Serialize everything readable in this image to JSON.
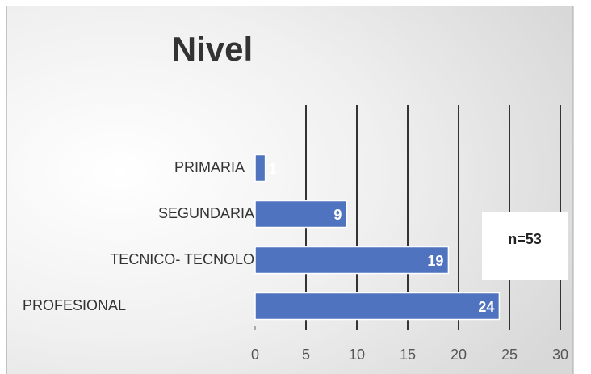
{
  "chart_data": {
    "type": "bar",
    "orientation": "horizontal",
    "title": "Nivel",
    "categories": [
      "PRIMARIA",
      "SEGUNDARIA",
      "TECNICO- TECNOLOGO",
      "PROFESIONAL"
    ],
    "values": [
      1,
      9,
      19,
      24
    ],
    "color": "#4f73be",
    "xlim": [
      0,
      30
    ],
    "xticks": [
      0,
      5,
      10,
      15,
      20,
      25,
      30
    ],
    "grid": true,
    "annotation": "n=53"
  }
}
